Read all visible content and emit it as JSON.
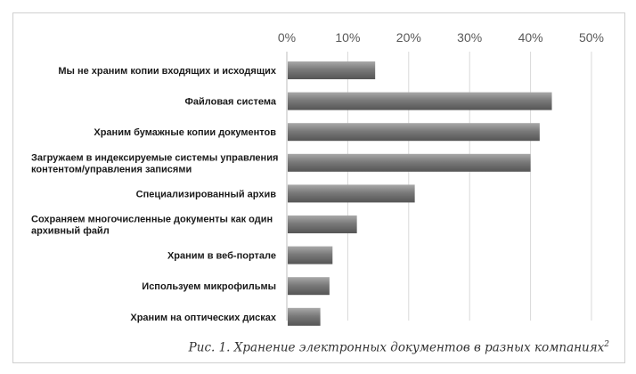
{
  "chart_data": {
    "type": "bar",
    "orientation": "horizontal",
    "categories": [
      "Мы не храним копии входящих и исходящих",
      "Файловая система",
      "Храним бумажные копии документов",
      "Загружаем в индексируемые системы управления контентом/управления записями",
      "Специализированный архив",
      "Сохраняем многочисленные документы как один архивный файл",
      "Храним в веб-портале",
      "Используем микрофильмы",
      "Храним на оптических дисках"
    ],
    "category_lines": [
      [
        "Мы не храним копии входящих и исходящих"
      ],
      [
        "Файловая система"
      ],
      [
        "Храним бумажные копии документов"
      ],
      [
        "Загружаем в индексируемые системы управления",
        "контентом/управления записями"
      ],
      [
        "Специализированный архив"
      ],
      [
        "Сохраняем многочисленные документы как один",
        "архивный файл"
      ],
      [
        "Храним в веб-портале"
      ],
      [
        "Используем микрофильмы"
      ],
      [
        "Храним на оптических дисках"
      ]
    ],
    "values": [
      14.5,
      43.5,
      41.5,
      40.0,
      21.0,
      11.5,
      7.5,
      7.0,
      5.5
    ],
    "xlim": [
      0,
      50
    ],
    "xticks": [
      "0%",
      "10%",
      "20%",
      "30%",
      "40%",
      "50%"
    ],
    "xtick_values": [
      0,
      10,
      20,
      30,
      40,
      50
    ],
    "grid": true,
    "axis_position": "top",
    "bar_color": "#7f7f7f",
    "grid_color": "#d9d9d9"
  },
  "caption": {
    "text": "Рис. 1. Хранение электронных документов в разных компаниях",
    "sup": "2"
  }
}
